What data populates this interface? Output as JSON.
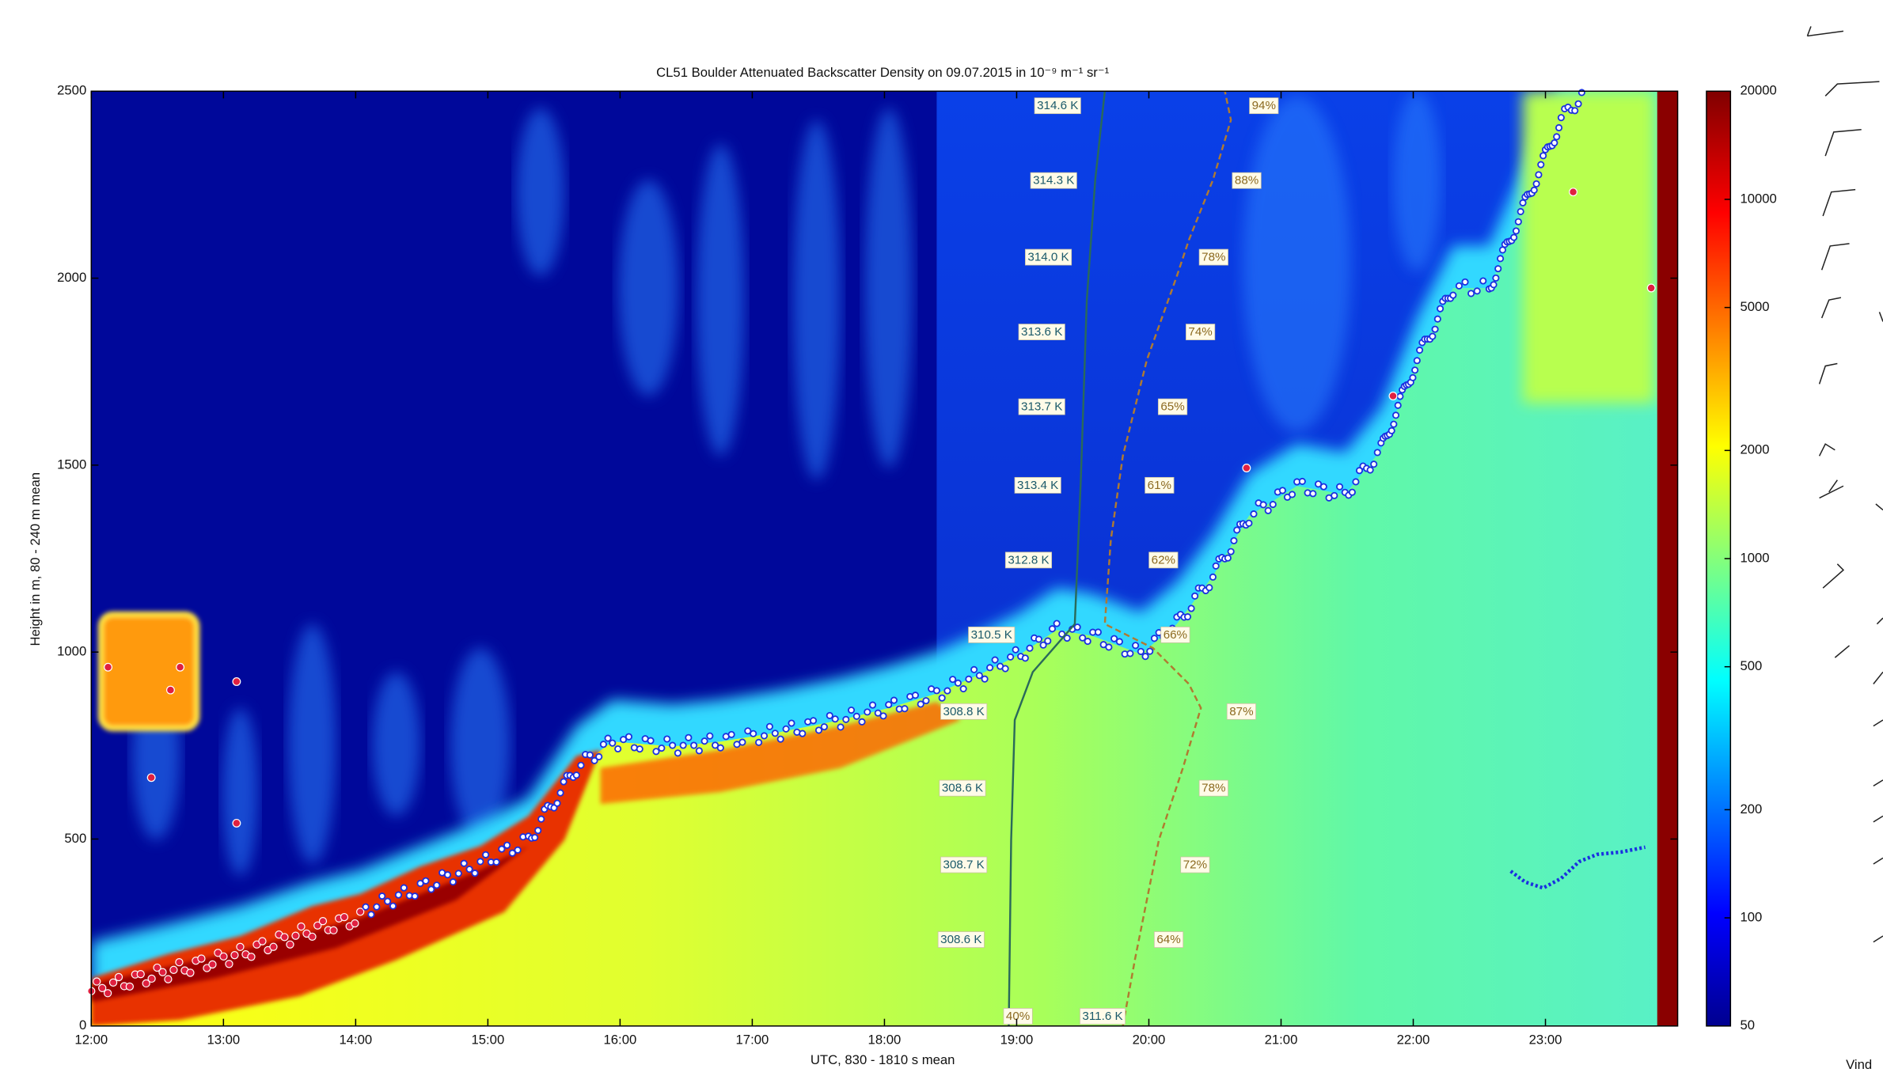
{
  "chart_data": {
    "type": "heatmap",
    "title": "CL51 Boulder Attenuated Backscatter Density on 09.07.2015 in 10⁻⁹ m⁻¹ sr⁻¹",
    "xlabel": "UTC, 830 - 1810 s mean",
    "ylabel": "Height in m, 80 - 240 m mean",
    "xlim": [
      12,
      24
    ],
    "xticks": [
      {
        "value": 12,
        "label": "12:00"
      },
      {
        "value": 13,
        "label": "13:00"
      },
      {
        "value": 14,
        "label": "14:00"
      },
      {
        "value": 15,
        "label": "15:00"
      },
      {
        "value": 16,
        "label": "16:00"
      },
      {
        "value": 17,
        "label": "17:00"
      },
      {
        "value": 18,
        "label": "18:00"
      },
      {
        "value": 19,
        "label": "19:00"
      },
      {
        "value": 20,
        "label": "20:00"
      },
      {
        "value": 21,
        "label": "21:00"
      },
      {
        "value": 22,
        "label": "22:00"
      },
      {
        "value": 23,
        "label": "23:00"
      }
    ],
    "ylim": [
      0,
      2500
    ],
    "yticks": [
      0,
      500,
      1000,
      1500,
      2000,
      2500
    ],
    "colorbar": {
      "scale": "log",
      "lim": [
        50,
        20000
      ],
      "ticks": [
        50,
        100,
        200,
        500,
        1000,
        2000,
        5000,
        10000,
        20000
      ]
    },
    "temperature_labels": [
      {
        "label": "314.6 K",
        "x": 19.31,
        "y": 2460
      },
      {
        "label": "314.3 K",
        "x": 19.28,
        "y": 2260
      },
      {
        "label": "314.0 K",
        "x": 19.24,
        "y": 2055
      },
      {
        "label": "313.6 K",
        "x": 19.19,
        "y": 1855
      },
      {
        "label": "313.7 K",
        "x": 19.19,
        "y": 1655
      },
      {
        "label": "313.4 K",
        "x": 19.16,
        "y": 1445
      },
      {
        "label": "312.8 K",
        "x": 19.09,
        "y": 1245
      },
      {
        "label": "310.5 K",
        "x": 18.81,
        "y": 1045
      },
      {
        "label": "308.8 K",
        "x": 18.6,
        "y": 840
      },
      {
        "label": "308.6 K",
        "x": 18.59,
        "y": 635
      },
      {
        "label": "308.7 K",
        "x": 18.6,
        "y": 430
      },
      {
        "label": "308.6 K",
        "x": 18.58,
        "y": 230
      },
      {
        "label": "311.6 K",
        "x": 19.65,
        "y": 25
      }
    ],
    "humidity_labels": [
      {
        "label": "94%",
        "x": 20.87,
        "y": 2460
      },
      {
        "label": "88%",
        "x": 20.74,
        "y": 2260
      },
      {
        "label": "78%",
        "x": 20.49,
        "y": 2055
      },
      {
        "label": "74%",
        "x": 20.39,
        "y": 1855
      },
      {
        "label": "65%",
        "x": 20.18,
        "y": 1655
      },
      {
        "label": "61%",
        "x": 20.08,
        "y": 1445
      },
      {
        "label": "62%",
        "x": 20.11,
        "y": 1245
      },
      {
        "label": "66%",
        "x": 20.2,
        "y": 1045
      },
      {
        "label": "87%",
        "x": 20.7,
        "y": 840
      },
      {
        "label": "78%",
        "x": 20.49,
        "y": 635
      },
      {
        "label": "72%",
        "x": 20.35,
        "y": 430
      },
      {
        "label": "64%",
        "x": 20.15,
        "y": 230
      },
      {
        "label": "40%",
        "x": 19.01,
        "y": 25
      }
    ]
  },
  "side_label": "Vind"
}
